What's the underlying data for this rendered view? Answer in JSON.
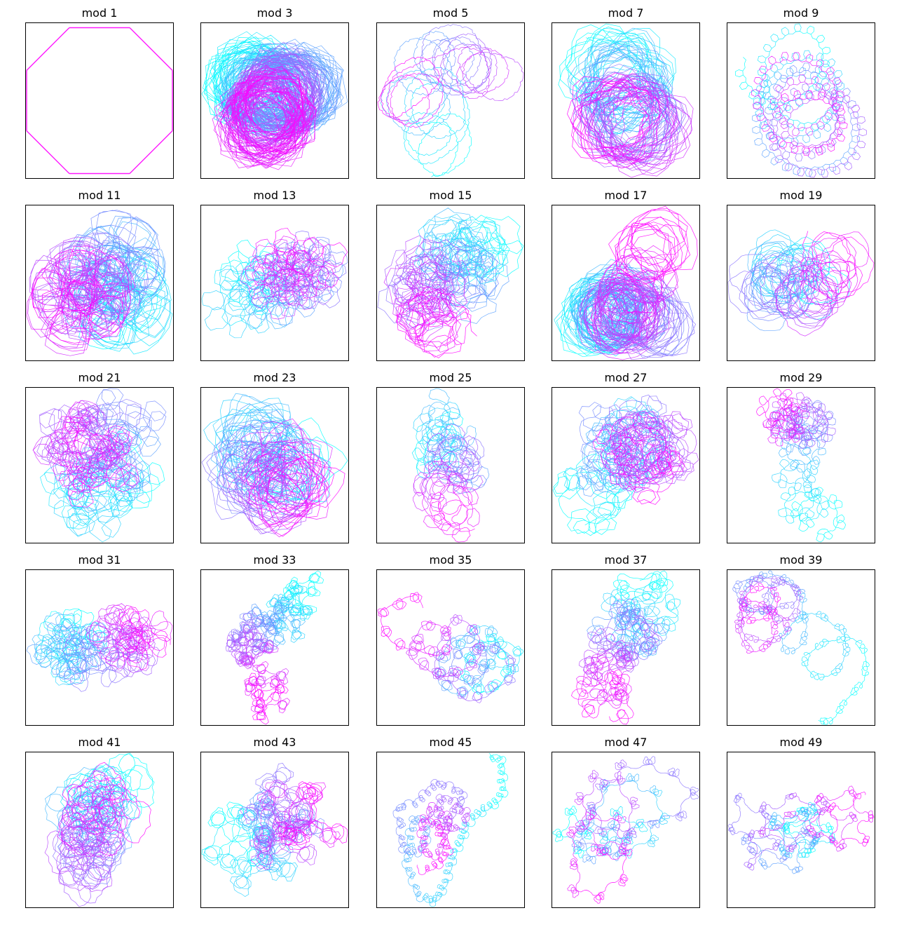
{
  "figure": {
    "colormap": [
      "#00ffff",
      "#ff00ff"
    ]
  },
  "chart_data": [
    {
      "type": "line",
      "title": "mod 1",
      "modulus": 1,
      "axes": "hidden"
    },
    {
      "type": "line",
      "title": "mod 3",
      "modulus": 3,
      "axes": "hidden"
    },
    {
      "type": "line",
      "title": "mod 5",
      "modulus": 5,
      "axes": "hidden"
    },
    {
      "type": "line",
      "title": "mod 7",
      "modulus": 7,
      "axes": "hidden"
    },
    {
      "type": "line",
      "title": "mod 9",
      "modulus": 9,
      "axes": "hidden"
    },
    {
      "type": "line",
      "title": "mod 11",
      "modulus": 11,
      "axes": "hidden"
    },
    {
      "type": "line",
      "title": "mod 13",
      "modulus": 13,
      "axes": "hidden"
    },
    {
      "type": "line",
      "title": "mod 15",
      "modulus": 15,
      "axes": "hidden"
    },
    {
      "type": "line",
      "title": "mod 17",
      "modulus": 17,
      "axes": "hidden"
    },
    {
      "type": "line",
      "title": "mod 19",
      "modulus": 19,
      "axes": "hidden"
    },
    {
      "type": "line",
      "title": "mod 21",
      "modulus": 21,
      "axes": "hidden"
    },
    {
      "type": "line",
      "title": "mod 23",
      "modulus": 23,
      "axes": "hidden"
    },
    {
      "type": "line",
      "title": "mod 25",
      "modulus": 25,
      "axes": "hidden"
    },
    {
      "type": "line",
      "title": "mod 27",
      "modulus": 27,
      "axes": "hidden"
    },
    {
      "type": "line",
      "title": "mod 29",
      "modulus": 29,
      "axes": "hidden"
    },
    {
      "type": "line",
      "title": "mod 31",
      "modulus": 31,
      "axes": "hidden"
    },
    {
      "type": "line",
      "title": "mod 33",
      "modulus": 33,
      "axes": "hidden"
    },
    {
      "type": "line",
      "title": "mod 35",
      "modulus": 35,
      "axes": "hidden"
    },
    {
      "type": "line",
      "title": "mod 37",
      "modulus": 37,
      "axes": "hidden"
    },
    {
      "type": "line",
      "title": "mod 39",
      "modulus": 39,
      "axes": "hidden"
    },
    {
      "type": "line",
      "title": "mod 41",
      "modulus": 41,
      "axes": "hidden"
    },
    {
      "type": "line",
      "title": "mod 43",
      "modulus": 43,
      "axes": "hidden"
    },
    {
      "type": "line",
      "title": "mod 45",
      "modulus": 45,
      "axes": "hidden"
    },
    {
      "type": "line",
      "title": "mod 47",
      "modulus": 47,
      "axes": "hidden"
    },
    {
      "type": "line",
      "title": "mod 49",
      "modulus": 49,
      "axes": "hidden"
    }
  ]
}
